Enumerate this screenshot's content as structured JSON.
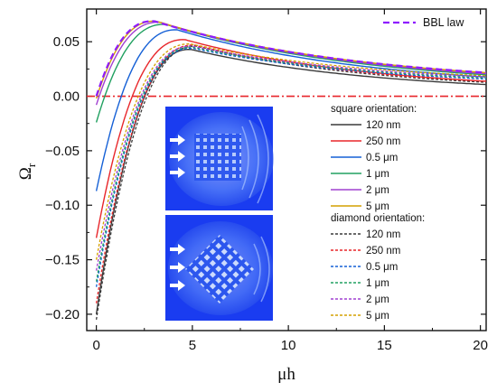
{
  "chart_data": {
    "type": "line",
    "xlabel_main": "μh",
    "ylabel_main": "Ω",
    "ylabel_sub": "r",
    "xlim": [
      -0.5,
      20.3
    ],
    "ylim": [
      -0.215,
      0.08
    ],
    "xticks": [
      0,
      5,
      10,
      15,
      20
    ],
    "xtick_labels": [
      "0",
      "5",
      "10",
      "15",
      "20"
    ],
    "yticks": [
      0.05,
      0.0,
      -0.05,
      -0.1,
      -0.15,
      -0.2
    ],
    "ytick_labels": [
      "0.05",
      "0.00",
      "−0.05",
      "−0.10",
      "−0.15",
      "−0.20"
    ],
    "reference_line": {
      "y": 0.0,
      "color": "#e8262a",
      "style": "dash-dot"
    },
    "bbl": {
      "name": "BBL law",
      "color": "#8f1cff",
      "style": "dashed",
      "y0": 0.0,
      "ymax": 0.069,
      "xpeak": 3.0,
      "yend": 0.022
    },
    "square_header": "square orientation:",
    "diamond_header": "diamond orientation:",
    "square_series": [
      {
        "name": "120 nm",
        "color": "#3a3a3a",
        "y0": -0.2,
        "ymax": 0.043,
        "xpeak": 4.9,
        "yend": 0.011
      },
      {
        "name": "250 nm",
        "color": "#e8262a",
        "y0": -0.13,
        "ymax": 0.052,
        "xpeak": 4.6,
        "yend": 0.014
      },
      {
        "name": "0.5 μm",
        "color": "#1560d6",
        "y0": -0.087,
        "ymax": 0.061,
        "xpeak": 4.2,
        "yend": 0.018
      },
      {
        "name": "1 μm",
        "color": "#20a060",
        "y0": -0.024,
        "ymax": 0.066,
        "xpeak": 3.6,
        "yend": 0.02
      },
      {
        "name": "2 μm",
        "color": "#a040d0",
        "y0": -0.008,
        "ymax": 0.068,
        "xpeak": 3.3,
        "yend": 0.021
      },
      {
        "name": "5 μm",
        "color": "#d4a000",
        "y0": -0.002,
        "ymax": 0.069,
        "xpeak": 3.1,
        "yend": 0.022
      }
    ],
    "diamond_series": [
      {
        "name": "120 nm",
        "color": "#3a3a3a",
        "y0": -0.205,
        "ymax": 0.046,
        "xpeak": 5.2,
        "yend": 0.013
      },
      {
        "name": "250 nm",
        "color": "#e8262a",
        "y0": -0.19,
        "ymax": 0.047,
        "xpeak": 5.1,
        "yend": 0.014
      },
      {
        "name": "0.5 μm",
        "color": "#1560d6",
        "y0": -0.175,
        "ymax": 0.044,
        "xpeak": 5.0,
        "yend": 0.016
      },
      {
        "name": "1 μm",
        "color": "#20a060",
        "y0": -0.17,
        "ymax": 0.045,
        "xpeak": 5.0,
        "yend": 0.017
      },
      {
        "name": "2 μm",
        "color": "#a040d0",
        "y0": -0.16,
        "ymax": 0.046,
        "xpeak": 5.0,
        "yend": 0.018
      },
      {
        "name": "5 μm",
        "color": "#d4a000",
        "y0": -0.15,
        "ymax": 0.048,
        "xpeak": 4.9,
        "yend": 0.019
      }
    ]
  }
}
